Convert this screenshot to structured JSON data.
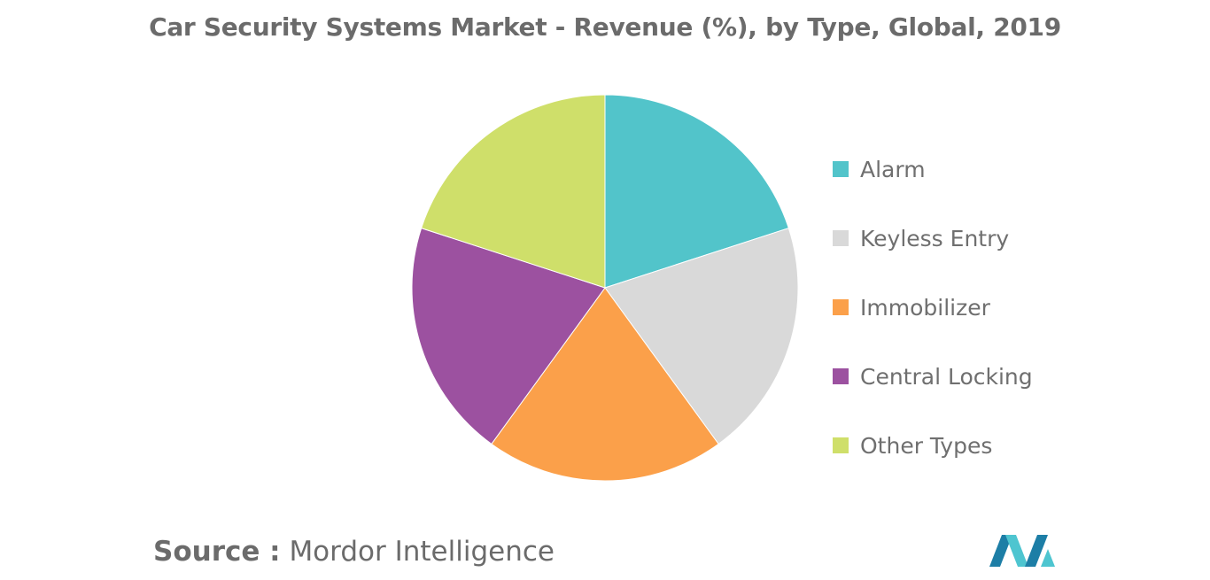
{
  "chart_data": {
    "type": "pie",
    "title": "Car Security Systems Market - Revenue (%), by Type, Global, 2019",
    "categories": [
      "Alarm",
      "Keyless Entry",
      "Immobilizer",
      "Central Locking",
      "Other Types"
    ],
    "values": [
      20,
      20,
      20,
      20,
      20
    ],
    "colors": [
      "#52c4ca",
      "#d9d9d9",
      "#fba04a",
      "#9c51a0",
      "#cfdf6a"
    ],
    "legend_position": "right"
  },
  "source": {
    "prefix": "Source :",
    "text": "Mordor Intelligence"
  },
  "logo": {
    "icon": "mordor-intelligence-logo",
    "colors": [
      "#1d7ea6",
      "#4ec5d0"
    ]
  }
}
